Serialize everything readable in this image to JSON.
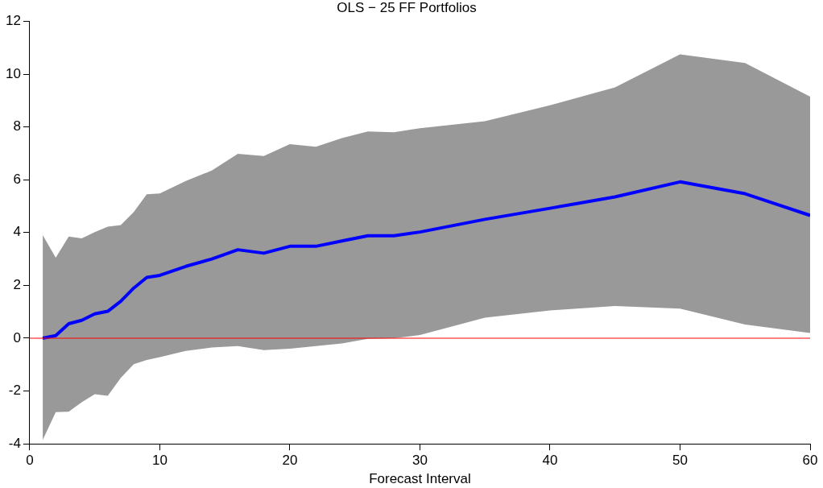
{
  "chart_data": {
    "type": "line",
    "title": "OLS − 25 FF Portfolios",
    "xlabel": "Forecast Interval",
    "x": [
      1,
      2,
      3,
      4,
      5,
      6,
      7,
      8,
      9,
      10,
      12,
      14,
      16,
      18,
      20,
      22,
      24,
      26,
      28,
      30,
      35,
      40,
      45,
      50,
      55,
      60
    ],
    "series": [
      {
        "color": "#0000ff",
        "values": [
          0.0,
          0.1,
          0.55,
          0.68,
          0.92,
          1.02,
          1.4,
          1.9,
          2.3,
          2.38,
          2.72,
          3.0,
          3.35,
          3.22,
          3.48,
          3.48,
          3.68,
          3.88,
          3.88,
          4.02,
          4.5,
          4.92,
          5.35,
          5.92,
          5.47,
          4.65
        ],
        "lower": [
          -3.85,
          -2.8,
          -2.78,
          -2.42,
          -2.12,
          -2.18,
          -1.5,
          -0.98,
          -0.82,
          -0.72,
          -0.48,
          -0.35,
          -0.3,
          -0.45,
          -0.4,
          -0.3,
          -0.2,
          -0.02,
          0.0,
          0.12,
          0.78,
          1.05,
          1.22,
          1.12,
          0.52,
          0.2
        ],
        "upper": [
          3.9,
          3.05,
          3.85,
          3.78,
          4.02,
          4.22,
          4.28,
          4.78,
          5.45,
          5.48,
          5.95,
          6.35,
          6.98,
          6.9,
          7.35,
          7.25,
          7.58,
          7.83,
          7.8,
          7.95,
          8.22,
          8.82,
          9.5,
          10.75,
          10.42,
          9.15
        ]
      }
    ],
    "xlim": [
      0,
      60
    ],
    "xticks": [
      0,
      10,
      20,
      30,
      40,
      50,
      60
    ],
    "ylim": [
      -4,
      12
    ],
    "yticks": [
      -4,
      -2,
      0,
      2,
      4,
      6,
      8,
      10,
      12
    ],
    "ref_lines": [
      {
        "axis": "y",
        "value": 0,
        "color": "#ff0000"
      }
    ],
    "grid": false,
    "legend": false,
    "marker": "none",
    "line_style": "solid"
  }
}
